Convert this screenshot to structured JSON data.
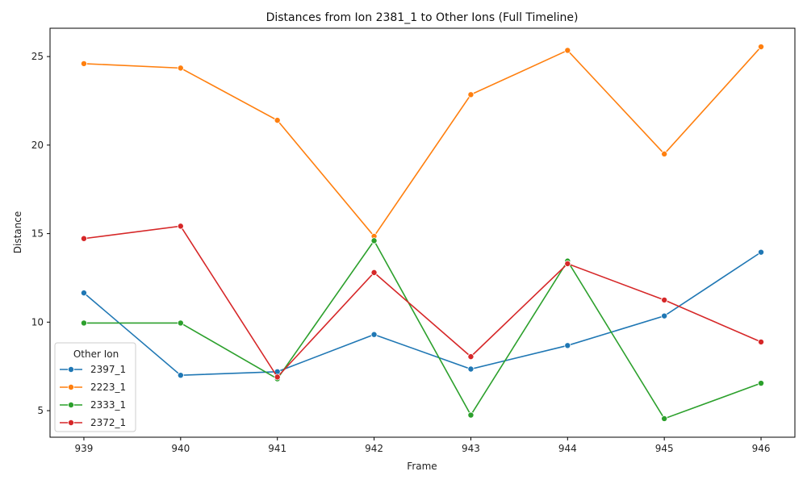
{
  "chart_data": {
    "type": "line",
    "title": "Distances from Ion 2381_1 to Other Ions (Full Timeline)",
    "xlabel": "Frame",
    "ylabel": "Distance",
    "x": [
      939,
      940,
      941,
      942,
      943,
      944,
      945,
      946
    ],
    "xlim": [
      938.65,
      946.35
    ],
    "ylim": [
      3.5,
      26.6
    ],
    "yticks": [
      5,
      10,
      15,
      20,
      25
    ],
    "grid": false,
    "legend": {
      "title": "Other Ion",
      "placement": "lower-left"
    },
    "series": [
      {
        "name": "2397_1",
        "color": "#1f77b4",
        "values": [
          11.65,
          7.0,
          7.2,
          9.3,
          7.35,
          8.68,
          10.35,
          13.95
        ]
      },
      {
        "name": "2223_1",
        "color": "#ff7f0e",
        "values": [
          24.6,
          24.35,
          21.4,
          14.85,
          22.85,
          25.35,
          19.5,
          25.55
        ]
      },
      {
        "name": "2333_1",
        "color": "#2ca02c",
        "values": [
          9.95,
          9.95,
          6.8,
          14.6,
          4.75,
          13.45,
          4.55,
          6.55
        ]
      },
      {
        "name": "2372_1",
        "color": "#d62728",
        "values": [
          14.72,
          15.42,
          6.9,
          12.8,
          8.05,
          13.3,
          11.25,
          8.88
        ]
      }
    ]
  }
}
